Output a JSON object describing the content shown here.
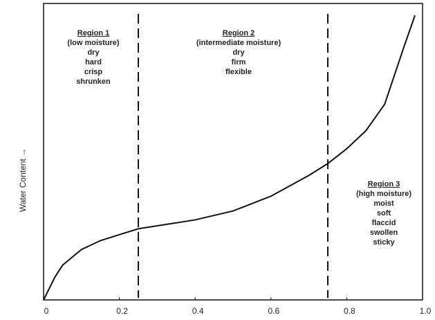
{
  "chart_data": {
    "type": "line",
    "ylabel": "Water Content →",
    "x": [
      0,
      0.03,
      0.05,
      0.1,
      0.15,
      0.2,
      0.25,
      0.3,
      0.4,
      0.5,
      0.6,
      0.7,
      0.75,
      0.8,
      0.85,
      0.9,
      0.95,
      0.98
    ],
    "values": [
      0,
      0.077,
      0.117,
      0.17,
      0.2,
      0.22,
      0.24,
      0.25,
      0.27,
      0.3,
      0.35,
      0.42,
      0.46,
      0.51,
      0.57,
      0.66,
      0.85,
      0.96
    ],
    "color": "#111111",
    "xlim": [
      0,
      1
    ],
    "xticks": [
      0,
      0.2,
      0.4,
      0.6,
      0.8,
      {
        "value": 1,
        "label": "1.0"
      }
    ],
    "ylim": [
      0,
      1
    ],
    "boundaries": [
      0.25,
      0.75
    ],
    "annotations": [
      {
        "title": "Region 1",
        "lines": [
          "(low moisture)",
          "dry",
          "hard",
          "crisp",
          "shrunken"
        ]
      },
      {
        "title": "Region 2",
        "lines": [
          "(intermediate moisture)",
          "dry",
          "firm",
          "flexible"
        ]
      },
      {
        "title": "Region 3",
        "lines": [
          "(high moisture)",
          "moist",
          "soft",
          "flaccid",
          "swollen",
          "sticky"
        ]
      }
    ]
  }
}
